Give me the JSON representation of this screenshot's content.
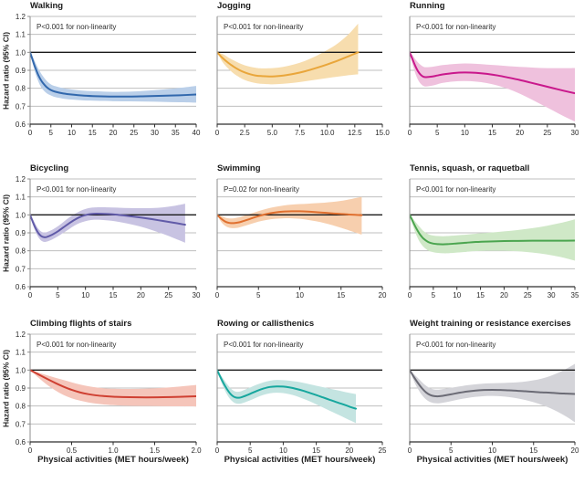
{
  "figure": {
    "ylabel": "Hazard ratio (95% CI)",
    "xlabel": "Physical activities (MET hours/week)",
    "ylim": [
      0.6,
      1.2
    ],
    "y_ticks": [
      "1.2",
      "1.1",
      "1.0",
      "0.9",
      "0.8",
      "0.7",
      "0.6"
    ],
    "reference_line": 1.0,
    "grid": "horizontal"
  },
  "chart_data": [
    {
      "type": "line",
      "title": "Walking",
      "annotation": "P<0.001 for non-linearity",
      "line_color": "#3268ad",
      "band_color": "#bacfe9",
      "xlim": [
        0,
        40
      ],
      "x_ticks": [
        0,
        5,
        10,
        15,
        20,
        25,
        30,
        35,
        40
      ],
      "x_tick_labels": [
        "0",
        "5",
        "10",
        "15",
        "20",
        "25",
        "30",
        "35",
        "40"
      ],
      "x": [
        0,
        0.5,
        1,
        1.5,
        2,
        2.5,
        3,
        4,
        5,
        6,
        8,
        10,
        13,
        16,
        20,
        24,
        28,
        32,
        36,
        40
      ],
      "hr": [
        1.0,
        0.965,
        0.93,
        0.9,
        0.872,
        0.85,
        0.832,
        0.806,
        0.79,
        0.781,
        0.771,
        0.765,
        0.759,
        0.756,
        0.754,
        0.754,
        0.756,
        0.758,
        0.761,
        0.765
      ],
      "ci_low": [
        1.0,
        0.95,
        0.905,
        0.868,
        0.837,
        0.812,
        0.795,
        0.772,
        0.76,
        0.751,
        0.742,
        0.737,
        0.732,
        0.73,
        0.728,
        0.727,
        0.726,
        0.724,
        0.722,
        0.72
      ],
      "ci_high": [
        1.0,
        0.982,
        0.957,
        0.932,
        0.908,
        0.888,
        0.87,
        0.841,
        0.822,
        0.812,
        0.8,
        0.793,
        0.786,
        0.783,
        0.78,
        0.781,
        0.786,
        0.793,
        0.802,
        0.813
      ]
    },
    {
      "type": "line",
      "title": "Jogging",
      "annotation": "P<0.001 for non-linearity",
      "line_color": "#e9a63b",
      "band_color": "#f7ddae",
      "xlim": [
        0,
        15
      ],
      "x_ticks": [
        0,
        2.5,
        5,
        7.5,
        10,
        12.5,
        15
      ],
      "x_tick_labels": [
        "0",
        "2.5",
        "5.0",
        "7.5",
        "10.0",
        "12.5",
        "15.0"
      ],
      "x": [
        0,
        0.5,
        1,
        1.5,
        2,
        2.5,
        3,
        3.5,
        4,
        5,
        6,
        7,
        8,
        9,
        10,
        11,
        12,
        12.8
      ],
      "hr": [
        1.0,
        0.968,
        0.942,
        0.92,
        0.902,
        0.888,
        0.878,
        0.871,
        0.868,
        0.866,
        0.871,
        0.881,
        0.895,
        0.913,
        0.933,
        0.955,
        0.98,
        1.0
      ],
      "ci_low": [
        1.0,
        0.945,
        0.91,
        0.882,
        0.862,
        0.846,
        0.836,
        0.829,
        0.825,
        0.822,
        0.825,
        0.831,
        0.839,
        0.848,
        0.857,
        0.865,
        0.873,
        0.878
      ],
      "ci_high": [
        1.0,
        0.99,
        0.972,
        0.955,
        0.94,
        0.928,
        0.92,
        0.914,
        0.911,
        0.912,
        0.919,
        0.933,
        0.953,
        0.98,
        1.013,
        1.052,
        1.105,
        1.16
      ]
    },
    {
      "type": "line",
      "title": "Running",
      "annotation": "P<0.001 for non-linearity",
      "line_color": "#c9188c",
      "band_color": "#efc1dd",
      "xlim": [
        0,
        30
      ],
      "x_ticks": [
        0,
        5,
        10,
        15,
        20,
        25,
        30
      ],
      "x_tick_labels": [
        "0",
        "5",
        "10",
        "15",
        "20",
        "25",
        "30"
      ],
      "x": [
        0,
        0.5,
        1,
        1.5,
        2,
        2.5,
        3,
        4,
        5,
        6,
        8,
        10,
        12,
        14,
        16,
        18,
        20,
        22,
        24,
        26,
        28,
        30
      ],
      "hr": [
        1.0,
        0.962,
        0.925,
        0.895,
        0.875,
        0.864,
        0.862,
        0.865,
        0.871,
        0.877,
        0.885,
        0.888,
        0.886,
        0.88,
        0.871,
        0.859,
        0.846,
        0.831,
        0.816,
        0.801,
        0.786,
        0.772
      ],
      "ci_low": [
        1.0,
        0.935,
        0.885,
        0.848,
        0.825,
        0.813,
        0.81,
        0.814,
        0.822,
        0.83,
        0.838,
        0.84,
        0.837,
        0.829,
        0.815,
        0.795,
        0.77,
        0.74,
        0.708,
        0.676,
        0.644,
        0.615
      ],
      "ci_high": [
        1.0,
        0.985,
        0.962,
        0.944,
        0.93,
        0.92,
        0.917,
        0.919,
        0.924,
        0.929,
        0.935,
        0.938,
        0.936,
        0.932,
        0.928,
        0.923,
        0.919,
        0.916,
        0.913,
        0.912,
        0.912,
        0.913
      ]
    },
    {
      "type": "line",
      "title": "Bicycling",
      "annotation": "P<0.001 for non-linearity",
      "line_color": "#615ba8",
      "band_color": "#c8c3e2",
      "xlim": [
        0,
        30
      ],
      "x_ticks": [
        0,
        5,
        10,
        15,
        20,
        25,
        30
      ],
      "x_tick_labels": [
        "0",
        "5",
        "10",
        "15",
        "20",
        "25",
        "30"
      ],
      "x": [
        0,
        0.5,
        1,
        1.5,
        2,
        2.5,
        3,
        4,
        5,
        6,
        7,
        8,
        9,
        10,
        11,
        12,
        14,
        16,
        18,
        20,
        22,
        24,
        26,
        28
      ],
      "hr": [
        1.0,
        0.96,
        0.925,
        0.898,
        0.882,
        0.876,
        0.877,
        0.89,
        0.908,
        0.93,
        0.952,
        0.972,
        0.988,
        0.999,
        1.005,
        1.007,
        1.005,
        1.0,
        0.993,
        0.985,
        0.976,
        0.966,
        0.956,
        0.945
      ],
      "ci_low": [
        1.0,
        0.945,
        0.905,
        0.875,
        0.857,
        0.85,
        0.851,
        0.863,
        0.88,
        0.9,
        0.92,
        0.94,
        0.955,
        0.965,
        0.971,
        0.973,
        0.969,
        0.961,
        0.949,
        0.934,
        0.915,
        0.894,
        0.87,
        0.845
      ],
      "ci_high": [
        1.0,
        0.976,
        0.947,
        0.922,
        0.907,
        0.902,
        0.904,
        0.917,
        0.936,
        0.96,
        0.984,
        1.004,
        1.021,
        1.033,
        1.04,
        1.042,
        1.042,
        1.04,
        1.038,
        1.037,
        1.038,
        1.042,
        1.05,
        1.062
      ]
    },
    {
      "type": "line",
      "title": "Swimming",
      "annotation": "P=0.02 for non-linearity",
      "line_color": "#e0702f",
      "band_color": "#f7cfae",
      "xlim": [
        0,
        20
      ],
      "x_ticks": [
        0,
        5,
        10,
        15,
        20
      ],
      "x_tick_labels": [
        "0",
        "5",
        "10",
        "15",
        "20"
      ],
      "x": [
        0,
        0.5,
        1,
        1.5,
        2,
        2.5,
        3,
        4,
        5,
        6,
        7,
        8,
        9,
        10,
        11,
        12,
        13,
        14,
        15,
        16,
        17.5
      ],
      "hr": [
        1.0,
        0.978,
        0.962,
        0.955,
        0.954,
        0.957,
        0.963,
        0.978,
        0.993,
        1.005,
        1.013,
        1.018,
        1.02,
        1.02,
        1.018,
        1.015,
        1.012,
        1.008,
        1.005,
        1.002,
        0.998
      ],
      "ci_low": [
        1.0,
        0.96,
        0.938,
        0.928,
        0.926,
        0.928,
        0.934,
        0.948,
        0.962,
        0.972,
        0.978,
        0.981,
        0.981,
        0.978,
        0.972,
        0.964,
        0.954,
        0.942,
        0.928,
        0.913,
        0.89
      ],
      "ci_high": [
        1.0,
        0.994,
        0.984,
        0.98,
        0.981,
        0.985,
        0.991,
        1.006,
        1.021,
        1.034,
        1.044,
        1.052,
        1.057,
        1.06,
        1.062,
        1.065,
        1.068,
        1.072,
        1.078,
        1.086,
        1.1
      ]
    },
    {
      "type": "line",
      "title": "Tennis, squash, or raquetball",
      "annotation": "P<0.001 for non-linearity",
      "line_color": "#4ba54f",
      "band_color": "#cfe8c7",
      "xlim": [
        0,
        35
      ],
      "x_ticks": [
        0,
        5,
        10,
        15,
        20,
        25,
        30,
        35
      ],
      "x_tick_labels": [
        "0",
        "5",
        "10",
        "15",
        "20",
        "25",
        "30",
        "35"
      ],
      "x": [
        0,
        0.5,
        1,
        1.5,
        2,
        2.5,
        3,
        4,
        5,
        6,
        7,
        8,
        10,
        12,
        14,
        17,
        20,
        23,
        26,
        29,
        32,
        35
      ],
      "hr": [
        1.0,
        0.972,
        0.945,
        0.92,
        0.898,
        0.88,
        0.866,
        0.848,
        0.84,
        0.837,
        0.836,
        0.837,
        0.841,
        0.845,
        0.849,
        0.852,
        0.854,
        0.855,
        0.856,
        0.856,
        0.856,
        0.857
      ],
      "ci_low": [
        1.0,
        0.955,
        0.915,
        0.882,
        0.855,
        0.835,
        0.82,
        0.8,
        0.792,
        0.788,
        0.786,
        0.786,
        0.79,
        0.794,
        0.798,
        0.8,
        0.8,
        0.797,
        0.79,
        0.78,
        0.765,
        0.745
      ],
      "ci_high": [
        1.0,
        0.985,
        0.968,
        0.952,
        0.936,
        0.921,
        0.908,
        0.892,
        0.885,
        0.882,
        0.881,
        0.882,
        0.886,
        0.89,
        0.895,
        0.901,
        0.908,
        0.916,
        0.926,
        0.939,
        0.955,
        0.975
      ]
    },
    {
      "type": "line",
      "title": "Climbing flights of stairs",
      "annotation": "P<0.001 for non-linearity",
      "line_color": "#cf4032",
      "band_color": "#f5c5ba",
      "xlim": [
        0,
        2
      ],
      "x_ticks": [
        0,
        0.5,
        1,
        1.5,
        2
      ],
      "x_tick_labels": [
        "0",
        "0.5",
        "1.0",
        "1.5",
        "2.0"
      ],
      "x": [
        0,
        0.1,
        0.2,
        0.3,
        0.4,
        0.5,
        0.6,
        0.7,
        0.8,
        0.9,
        1.0,
        1.2,
        1.4,
        1.6,
        1.8,
        2.0
      ],
      "hr": [
        1.0,
        0.976,
        0.952,
        0.929,
        0.908,
        0.89,
        0.876,
        0.866,
        0.859,
        0.855,
        0.852,
        0.849,
        0.848,
        0.849,
        0.851,
        0.854
      ],
      "ci_low": [
        1.0,
        0.958,
        0.92,
        0.888,
        0.862,
        0.843,
        0.83,
        0.82,
        0.813,
        0.808,
        0.805,
        0.801,
        0.8,
        0.799,
        0.798,
        0.797
      ],
      "ci_high": [
        1.0,
        0.986,
        0.972,
        0.958,
        0.945,
        0.932,
        0.92,
        0.91,
        0.903,
        0.898,
        0.896,
        0.895,
        0.897,
        0.901,
        0.908,
        0.917
      ]
    },
    {
      "type": "line",
      "title": "Rowing or callisthenics",
      "annotation": "P<0.001 for non-linearity",
      "line_color": "#17a79e",
      "band_color": "#c4e4e1",
      "xlim": [
        0,
        25
      ],
      "x_ticks": [
        0,
        5,
        10,
        15,
        20,
        25
      ],
      "x_tick_labels": [
        "0",
        "5",
        "10",
        "15",
        "20",
        "25"
      ],
      "x": [
        0,
        0.5,
        1,
        1.5,
        2,
        2.5,
        3,
        3.5,
        4,
        5,
        6,
        7,
        8,
        9,
        10,
        11,
        12,
        13,
        14,
        15,
        16,
        17,
        18,
        19,
        20,
        21
      ],
      "hr": [
        1.0,
        0.96,
        0.924,
        0.893,
        0.868,
        0.852,
        0.846,
        0.847,
        0.853,
        0.868,
        0.884,
        0.897,
        0.906,
        0.909,
        0.908,
        0.903,
        0.895,
        0.885,
        0.873,
        0.861,
        0.848,
        0.835,
        0.822,
        0.81,
        0.797,
        0.785
      ],
      "ci_low": [
        1.0,
        0.945,
        0.9,
        0.864,
        0.837,
        0.82,
        0.813,
        0.813,
        0.818,
        0.832,
        0.848,
        0.862,
        0.871,
        0.874,
        0.872,
        0.865,
        0.855,
        0.841,
        0.826,
        0.809,
        0.792,
        0.774,
        0.757,
        0.74,
        0.722,
        0.705
      ],
      "ci_high": [
        1.0,
        0.975,
        0.948,
        0.922,
        0.9,
        0.885,
        0.879,
        0.881,
        0.888,
        0.903,
        0.919,
        0.932,
        0.941,
        0.945,
        0.944,
        0.941,
        0.936,
        0.929,
        0.921,
        0.913,
        0.905,
        0.897,
        0.889,
        0.881,
        0.873,
        0.866
      ]
    },
    {
      "type": "line",
      "title": "Weight training or resistance exercises",
      "annotation": "P<0.001 for non-linearity",
      "line_color": "#6b6b75",
      "band_color": "#d4d4d9",
      "xlim": [
        0,
        20
      ],
      "x_ticks": [
        0,
        5,
        10,
        15,
        20
      ],
      "x_tick_labels": [
        "0",
        "5",
        "10",
        "15",
        "20"
      ],
      "x": [
        0,
        0.5,
        1,
        1.5,
        2,
        2.5,
        3,
        3.5,
        4,
        5,
        6,
        7,
        8,
        9,
        10,
        11,
        12,
        13,
        14,
        15,
        16,
        17,
        18,
        19,
        20
      ],
      "hr": [
        1.0,
        0.962,
        0.928,
        0.898,
        0.875,
        0.861,
        0.855,
        0.854,
        0.857,
        0.865,
        0.874,
        0.881,
        0.886,
        0.889,
        0.89,
        0.889,
        0.887,
        0.885,
        0.882,
        0.879,
        0.876,
        0.874,
        0.871,
        0.869,
        0.867
      ],
      "ci_low": [
        1.0,
        0.94,
        0.895,
        0.86,
        0.836,
        0.822,
        0.816,
        0.815,
        0.818,
        0.827,
        0.837,
        0.845,
        0.851,
        0.855,
        0.856,
        0.854,
        0.85,
        0.843,
        0.833,
        0.821,
        0.806,
        0.788,
        0.766,
        0.74,
        0.71
      ],
      "ci_high": [
        1.0,
        0.978,
        0.955,
        0.932,
        0.912,
        0.898,
        0.892,
        0.891,
        0.894,
        0.901,
        0.909,
        0.916,
        0.921,
        0.925,
        0.927,
        0.928,
        0.93,
        0.932,
        0.936,
        0.943,
        0.953,
        0.967,
        0.985,
        1.008,
        1.035
      ]
    }
  ]
}
